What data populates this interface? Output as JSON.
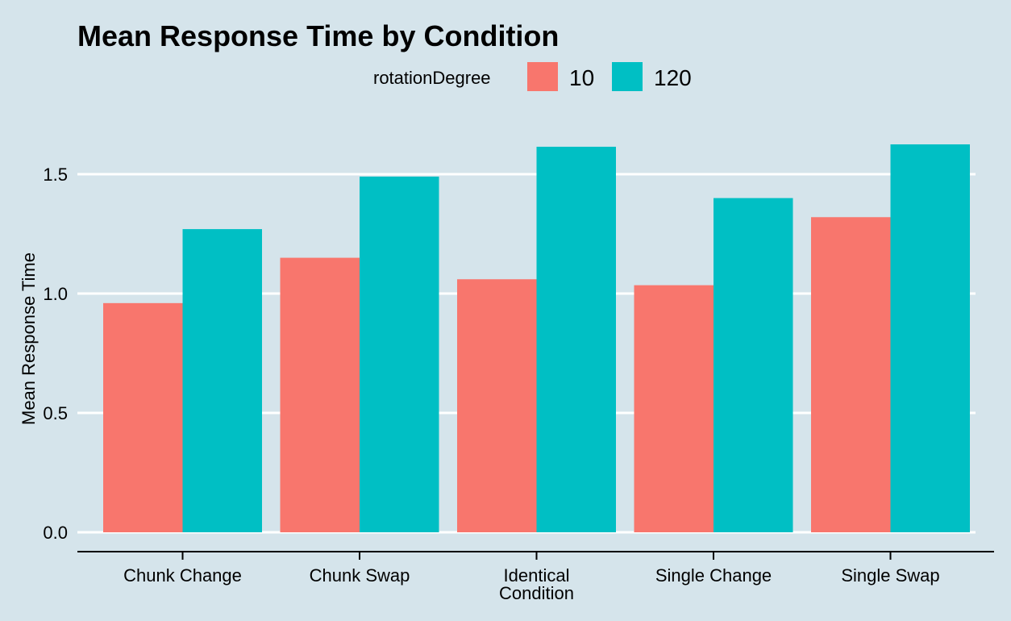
{
  "chart_data": {
    "type": "bar",
    "title": "Mean Response Time by Condition",
    "xlabel": "",
    "ylabel": "Mean Response Time",
    "legend_title": "rotationDegree",
    "legend_position": "top",
    "categories": [
      "Chunk Change",
      "Chunk Swap",
      "Identical Condition",
      "Single Change",
      "Single Swap"
    ],
    "category_lines": [
      [
        "Chunk Change"
      ],
      [
        "Chunk Swap"
      ],
      [
        "Identical",
        "Condition"
      ],
      [
        "Single Change"
      ],
      [
        "Single Swap"
      ]
    ],
    "series": [
      {
        "name": "10",
        "color": "#f8766d",
        "values": [
          0.96,
          1.15,
          1.06,
          1.035,
          1.32
        ]
      },
      {
        "name": "120",
        "color": "#00bfc4",
        "values": [
          1.27,
          1.49,
          1.615,
          1.4,
          1.625
        ]
      }
    ],
    "ylim": [
      0,
      1.7
    ],
    "yticks": [
      0.0,
      0.5,
      1.0,
      1.5
    ],
    "ytick_labels": [
      "0.0",
      "0.5",
      "1.0",
      "1.5"
    ],
    "grid": "horizontal major lines (white)",
    "background": "#d5e4eb"
  }
}
